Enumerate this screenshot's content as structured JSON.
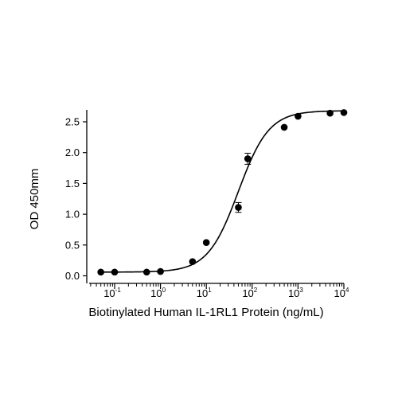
{
  "chart_data": {
    "type": "scatter",
    "title": "",
    "xlabel": "Biotinylated Human IL-1RL1 Protein (ng/mL)",
    "ylabel": "OD 450mm",
    "xscale": "log",
    "xlim": [
      0.03,
      10000
    ],
    "ylim": [
      0,
      2.75
    ],
    "x_ticks": [
      {
        "value": 0.1,
        "base": "10",
        "exp": "-1"
      },
      {
        "value": 1,
        "base": "10",
        "exp": "0"
      },
      {
        "value": 10,
        "base": "10",
        "exp": "1"
      },
      {
        "value": 100,
        "base": "10",
        "exp": "2"
      },
      {
        "value": 1000,
        "base": "10",
        "exp": "3"
      },
      {
        "value": 10000,
        "base": "10",
        "exp": "4"
      }
    ],
    "y_ticks": [
      "0.0",
      "0.5",
      "1.0",
      "1.5",
      "2.0",
      "2.5"
    ],
    "grid": false,
    "legend": "none",
    "marker_color": "#000000",
    "curve_color": "#000000",
    "curve": {
      "model": "4PL",
      "bottom": 0.06,
      "top": 2.68,
      "ec50": 50,
      "hill": 1.3
    },
    "series": [
      {
        "x": [
          0.05,
          0.1,
          0.5,
          1,
          5,
          10,
          50,
          80,
          500,
          1000,
          5000,
          10000
        ],
        "y": [
          0.06,
          0.06,
          0.06,
          0.07,
          0.23,
          0.54,
          1.11,
          1.9,
          2.41,
          2.59,
          2.64,
          2.65
        ],
        "err": [
          0,
          0,
          0,
          0,
          0,
          0,
          0.08,
          0.09,
          0,
          0,
          0,
          0
        ]
      }
    ]
  }
}
